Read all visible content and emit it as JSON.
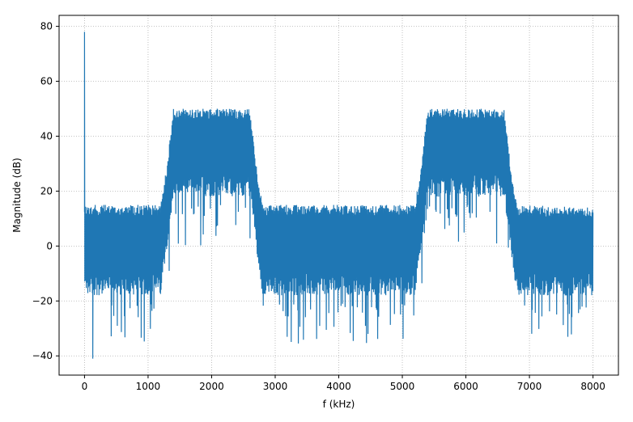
{
  "chart_data": {
    "type": "line",
    "title": "",
    "xlabel": "f (kHz)",
    "ylabel": "Magnitude (dB)",
    "xlim": [
      -400,
      8400
    ],
    "ylim": [
      -47,
      84
    ],
    "x_ticks": [
      0,
      1000,
      2000,
      3000,
      4000,
      5000,
      6000,
      7000,
      8000
    ],
    "y_ticks": [
      -40,
      -20,
      0,
      20,
      40,
      60,
      80
    ],
    "x_tick_labels": [
      "0",
      "1000",
      "2000",
      "3000",
      "4000",
      "5000",
      "6000",
      "7000",
      "8000"
    ],
    "y_tick_labels": [
      "−40",
      "−20",
      "0",
      "20",
      "40",
      "60",
      "80"
    ],
    "grid": true,
    "grid_style": "dotted",
    "line_color": "#1f77b4",
    "series": [
      {
        "x": [
          0,
          1200,
          1300,
          1400,
          2600,
          2700,
          2800,
          5200,
          5300,
          5400,
          6600,
          6700,
          6800,
          8000
        ],
        "upper_db": [
          15,
          15,
          30,
          50,
          50,
          30,
          15,
          15,
          30,
          50,
          50,
          30,
          15,
          14
        ],
        "typical_low_db": [
          -18,
          -18,
          0,
          18,
          18,
          0,
          -18,
          -18,
          0,
          18,
          18,
          0,
          -18,
          -18
        ],
        "dc_spike": {
          "x": 0,
          "y": 78
        },
        "minimum": {
          "x": 130,
          "y": -41
        }
      }
    ]
  }
}
